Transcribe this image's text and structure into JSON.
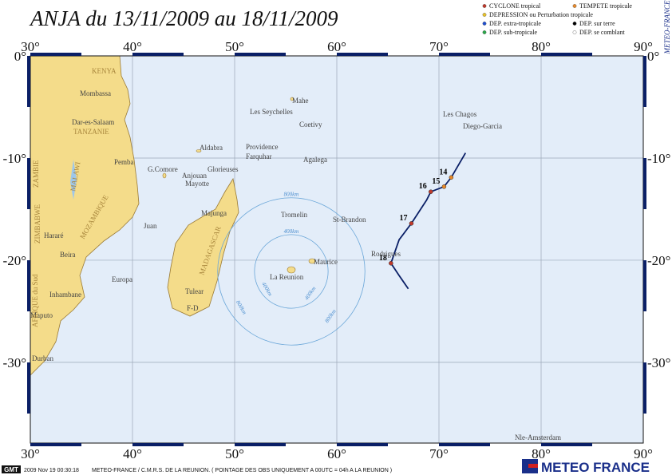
{
  "title": "ANJA du 13/11/2009 au 18/11/2009",
  "legend": [
    {
      "label": "CYCLONE tropical",
      "color": "#c0392b"
    },
    {
      "label": "TEMPETE tropicale",
      "color": "#e8892a"
    },
    {
      "label": "DEPRESSION ou Perturbation tropicale",
      "color": "#e8c22a"
    },
    {
      "label": "DEP. extra-tropicale",
      "color": "#1f4fd1"
    },
    {
      "label": "DEP. sur terre",
      "color": "#000000"
    },
    {
      "label": "DEP. sub-tropicale",
      "color": "#2aa84a"
    },
    {
      "label": "DEP. se comblant",
      "color": "#ffffff"
    }
  ],
  "map": {
    "xlim": [
      30,
      90
    ],
    "ylim": [
      -37.9,
      0
    ],
    "xticks": [
      {
        "value": 30,
        "label": "30°"
      },
      {
        "value": 40,
        "label": "40°"
      },
      {
        "value": 50,
        "label": "50°"
      },
      {
        "value": 60,
        "label": "60°"
      },
      {
        "value": 70,
        "label": "70°"
      },
      {
        "value": 80,
        "label": "80°"
      },
      {
        "value": 90,
        "label": "90°"
      }
    ],
    "yticks": [
      {
        "value": 0,
        "label": "0°"
      },
      {
        "value": -10,
        "label": "-10°"
      },
      {
        "value": -20,
        "label": "-20°"
      },
      {
        "value": -30,
        "label": "-30°"
      }
    ]
  },
  "track": {
    "color": "#0a1f66",
    "lon": [
      72.6,
      71.2,
      70.5,
      69.2,
      68.8,
      67.3,
      66.1,
      65.3,
      66.1,
      67.0
    ],
    "lat": [
      -9.5,
      -11.9,
      -12.8,
      -13.3,
      -14.1,
      -16.4,
      -18.0,
      -20.3,
      -21.5,
      -22.8
    ]
  },
  "fixes": [
    {
      "label": "14",
      "lon": 71.2,
      "lat": -11.9,
      "color": "#e8892a"
    },
    {
      "label": "15",
      "lon": 70.5,
      "lat": -12.8,
      "color": "#e8892a"
    },
    {
      "label": "16",
      "lon": 69.2,
      "lat": -13.3,
      "color": "#c0392b"
    },
    {
      "label": "17",
      "lon": 67.3,
      "lat": -16.4,
      "color": "#c0392b"
    },
    {
      "label": "18",
      "lon": 65.3,
      "lat": -20.3,
      "color": "#c0392b"
    }
  ],
  "rings": [
    {
      "value": 400,
      "label": "400km"
    },
    {
      "value": 800,
      "label": "800km"
    }
  ],
  "places": [
    "KENYA",
    "Mombassa",
    "Dar-es-Salaam",
    "TANZANIE",
    "ZAMBIE",
    "MALAWI",
    "MOZAMBIQUE",
    "Pemba",
    "Hararé",
    "Beira",
    "Inhambane",
    "Maputo",
    "Durban",
    "AFRIQUE du Sud",
    "ZIMBABWE",
    "Juan",
    "Europa",
    "Mahe",
    "Les Seychelles",
    "Coetivy",
    "Aldabra",
    "Providence",
    "Farquhar",
    "Agalega",
    "G.Comore",
    "Glorieuses",
    "Anjouan",
    "Mayotte",
    "Majunga",
    "Tromelin",
    "St-Brandon",
    "MADAGASCAR",
    "Tulear",
    "F-D",
    "La Reunion",
    "Maurice",
    "Rodrigues",
    "Les Chagos",
    "Diego-Garcia",
    "Nle-Amsterdam"
  ],
  "side_label": "METEO-FRANCE",
  "footer": {
    "gmt": "GMT",
    "timestamp": "2009 Nov 19 00:30:18",
    "credit": "METEO-FRANCE / C.M.R.S. DE LA REUNION. ( POINTAGE DES OBS UNIQUEMENT A 00UTC = 04h A LA REUNION )",
    "logo": "METEO FRANCE"
  }
}
